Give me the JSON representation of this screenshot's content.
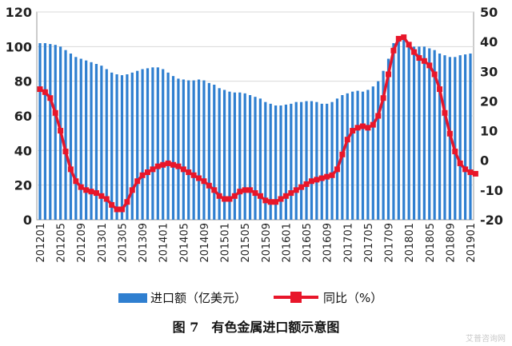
{
  "chart_data": {
    "type": "bar",
    "left_axis": {
      "range": [
        0,
        120
      ],
      "ticks": [
        "0",
        "20",
        "40",
        "60",
        "80",
        "100",
        "120"
      ]
    },
    "right_axis": {
      "range": [
        -20,
        50
      ],
      "ticks": [
        "-20",
        "-10",
        "0",
        "10",
        "20",
        "30",
        "40",
        "50"
      ]
    },
    "x_tick_labels": [
      "201201",
      "201205",
      "201209",
      "201301",
      "201305",
      "201309",
      "201401",
      "201405",
      "201409",
      "201501",
      "201505",
      "201509",
      "201601",
      "201605",
      "201609",
      "201701",
      "201705",
      "201709",
      "201801",
      "201805",
      "201809",
      "201901"
    ],
    "series": [
      {
        "name": "进口额（亿美元）",
        "kind": "bar",
        "axis": "left",
        "color": "#2f7fd0",
        "values": [
          102,
          102,
          101.5,
          101,
          100,
          98,
          96,
          94,
          93,
          92,
          91,
          90,
          89,
          87,
          85,
          84,
          83.5,
          84,
          85,
          86,
          87,
          87.5,
          88,
          88,
          87,
          85,
          83,
          81.5,
          81,
          80.5,
          80.5,
          81,
          80.5,
          79,
          78,
          76,
          75,
          74,
          73.5,
          73.5,
          73,
          72,
          71,
          70,
          68,
          67,
          66,
          66,
          66.5,
          67,
          68,
          68,
          68.5,
          68.5,
          68,
          67,
          67,
          68,
          70,
          72,
          73,
          74,
          74.5,
          74,
          75,
          77,
          80,
          86,
          93,
          102,
          106,
          105,
          102,
          100,
          100,
          100,
          99,
          98,
          96,
          95,
          94,
          94,
          95,
          95.5,
          96
        ]
      },
      {
        "name": "同比（%）",
        "kind": "line",
        "axis": "right",
        "color": "#e8162a",
        "values": [
          24,
          23,
          21,
          16,
          10,
          3,
          -3,
          -7,
          -9,
          -10,
          -10.5,
          -11,
          -12,
          -13,
          -15,
          -16.5,
          -16.5,
          -14,
          -10,
          -7,
          -5,
          -4,
          -3,
          -2,
          -1.5,
          -1,
          -1.5,
          -2,
          -3,
          -4,
          -5,
          -6,
          -7,
          -8.5,
          -10,
          -12,
          -13,
          -13,
          -12,
          -10.5,
          -10,
          -10,
          -11,
          -12,
          -13.5,
          -14,
          -14,
          -13,
          -12,
          -11,
          -10,
          -9,
          -8,
          -7,
          -6.5,
          -6,
          -5.5,
          -5,
          -3,
          2,
          7,
          10,
          11,
          11.5,
          11,
          12,
          15,
          21,
          29,
          37,
          41,
          41.5,
          39,
          36.5,
          34.5,
          33.5,
          32,
          29,
          24,
          16,
          9,
          3,
          -1,
          -3,
          -4,
          -4.5
        ]
      }
    ]
  },
  "caption": "图 7　有色金属进口额示意图",
  "watermark": "艾普咨询网"
}
